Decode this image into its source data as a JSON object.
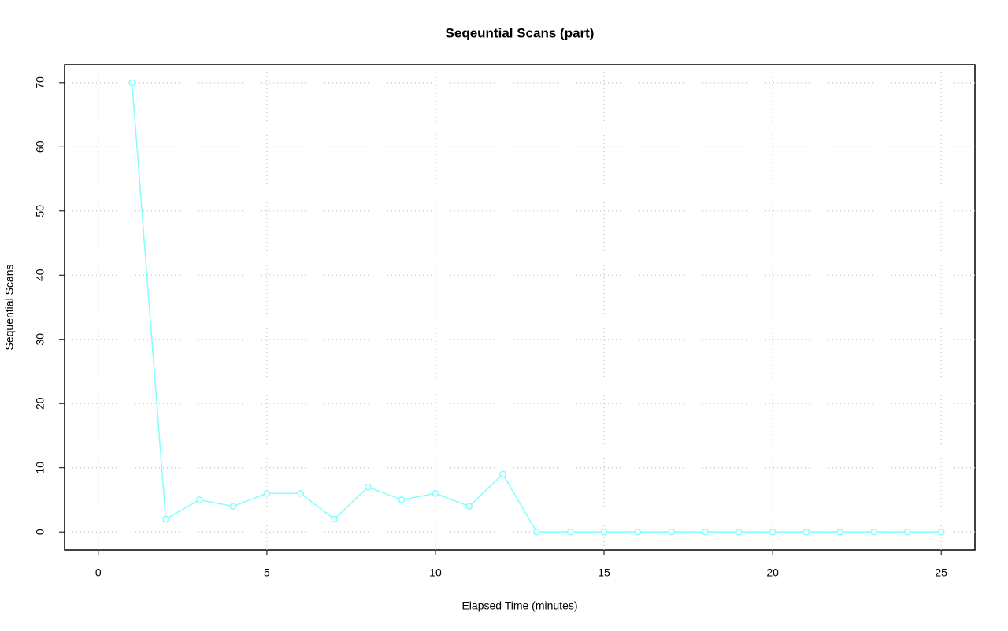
{
  "chart_data": {
    "type": "line",
    "title": "Seqeuntial Scans (part)",
    "x_label": "Elapsed Time (minutes)",
    "y_label": "Sequential Scans",
    "x": [
      1,
      2,
      3,
      4,
      5,
      6,
      7,
      8,
      9,
      10,
      11,
      12,
      13,
      14,
      15,
      16,
      17,
      18,
      19,
      20,
      21,
      22,
      23,
      24,
      25
    ],
    "series": [
      {
        "name": "Sequential Scans",
        "color": "#80ffff",
        "values": [
          70,
          2,
          5,
          4,
          6,
          6,
          2,
          7,
          5,
          6,
          4,
          9,
          0,
          0,
          0,
          0,
          0,
          0,
          0,
          0,
          0,
          0,
          0,
          0,
          0
        ]
      }
    ],
    "xlim": [
      -1,
      26
    ],
    "ylim": [
      -2.8,
      72.8
    ],
    "xticks": [
      0,
      5,
      10,
      15,
      20,
      25
    ],
    "yticks": [
      0,
      10,
      20,
      30,
      40,
      50,
      60,
      70
    ],
    "grid": true,
    "markers": "open-circle"
  }
}
